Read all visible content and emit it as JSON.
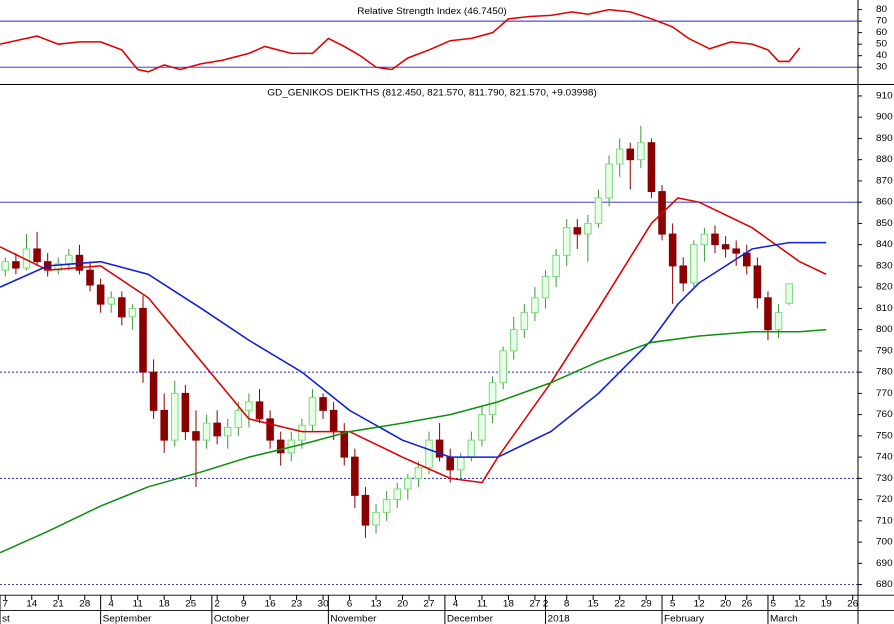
{
  "chart_data": [
    {
      "type": "line",
      "title": "Relative Strength Index (46.7450)",
      "xlim": [
        0,
        162
      ],
      "ylim": [
        16.67,
        86.67
      ],
      "yticks": [
        30,
        40,
        50,
        60,
        70,
        80
      ],
      "hlines": [
        {
          "value": 70,
          "color": "#2020d0",
          "style": "solid"
        },
        {
          "value": 30,
          "color": "#2020d0",
          "style": "solid"
        }
      ],
      "series": [
        {
          "color": "#e00000",
          "x": [
            0,
            4,
            7,
            11,
            15,
            19,
            23,
            26,
            28,
            31,
            34,
            38,
            42,
            47,
            50,
            55,
            59,
            62,
            65,
            68,
            71,
            74,
            77,
            81,
            85,
            89,
            93,
            96,
            100,
            104,
            108,
            111,
            115,
            119,
            123,
            127,
            130,
            134,
            138,
            142,
            145,
            147,
            149,
            151
          ],
          "values": [
            50,
            54,
            57,
            50,
            52,
            52,
            45,
            28,
            26,
            32,
            28,
            33,
            36,
            42,
            48,
            42,
            42,
            55,
            48,
            40,
            30,
            28,
            38,
            45,
            53,
            55,
            60,
            72,
            74,
            75,
            78,
            76,
            80,
            78,
            72,
            65,
            55,
            46,
            52,
            50,
            45,
            35,
            35,
            46.745
          ]
        }
      ]
    },
    {
      "type": "candlestick",
      "title": "GD_GENIKOS DEIKTHS (812.450, 821.570, 811.790, 821.570, +9.03998)",
      "xlim": [
        0,
        162
      ],
      "ylim": [
        675,
        914.5
      ],
      "yticks": [
        680,
        690,
        700,
        710,
        720,
        730,
        740,
        750,
        760,
        770,
        780,
        790,
        800,
        810,
        820,
        830,
        840,
        850,
        860,
        870,
        880,
        890,
        900,
        910
      ],
      "xticks": [
        {
          "value": 1,
          "label": "7"
        },
        {
          "value": 6,
          "label": "14"
        },
        {
          "value": 11,
          "label": "21"
        },
        {
          "value": 16,
          "label": "28"
        },
        {
          "value": 21,
          "label": "4"
        },
        {
          "value": 26,
          "label": "11"
        },
        {
          "value": 31,
          "label": "18"
        },
        {
          "value": 36,
          "label": "25"
        },
        {
          "value": 41,
          "label": "2"
        },
        {
          "value": 46,
          "label": "9"
        },
        {
          "value": 51,
          "label": "16"
        },
        {
          "value": 56,
          "label": "23"
        },
        {
          "value": 61,
          "label": "30"
        },
        {
          "value": 66,
          "label": "6"
        },
        {
          "value": 71,
          "label": "13"
        },
        {
          "value": 76,
          "label": "20"
        },
        {
          "value": 81,
          "label": "27"
        },
        {
          "value": 86,
          "label": "4"
        },
        {
          "value": 91,
          "label": "11"
        },
        {
          "value": 96,
          "label": "18"
        },
        {
          "value": 101,
          "label": "27"
        },
        {
          "value": 103,
          "label": "2"
        },
        {
          "value": 107,
          "label": "8"
        },
        {
          "value": 112,
          "label": "15"
        },
        {
          "value": 117,
          "label": "22"
        },
        {
          "value": 122,
          "label": "29"
        },
        {
          "value": 127,
          "label": "5"
        },
        {
          "value": 132,
          "label": "12"
        },
        {
          "value": 137,
          "label": "20"
        },
        {
          "value": 141,
          "label": "26"
        },
        {
          "value": 146,
          "label": "5"
        },
        {
          "value": 151,
          "label": "12"
        },
        {
          "value": 156,
          "label": "19"
        },
        {
          "value": 161,
          "label": "26"
        }
      ],
      "month_labels": [
        {
          "value": 0,
          "label": "st"
        },
        {
          "value": 19,
          "label": "September"
        },
        {
          "value": 40,
          "label": "October"
        },
        {
          "value": 62,
          "label": "November"
        },
        {
          "value": 84,
          "label": "December"
        },
        {
          "value": 103,
          "label": "2018"
        },
        {
          "value": 125,
          "label": "February"
        },
        {
          "value": 145,
          "label": "March"
        }
      ],
      "up_color": "#7ed87e",
      "down_color": "#8b0000",
      "hlines": [
        {
          "value": 860,
          "color": "#2020d0",
          "style": "solid"
        },
        {
          "value": 780,
          "color": "#2020d0",
          "style": "dotted"
        },
        {
          "value": 730,
          "color": "#2020d0",
          "style": "dotted"
        },
        {
          "value": 680,
          "color": "#2020d0",
          "style": "dotted"
        }
      ],
      "x": [
        1,
        3,
        5,
        7,
        9,
        11,
        13,
        15,
        17,
        19,
        21,
        23,
        25,
        27,
        29,
        31,
        33,
        35,
        37,
        39,
        41,
        43,
        45,
        47,
        49,
        51,
        53,
        55,
        57,
        59,
        61,
        63,
        65,
        67,
        69,
        71,
        73,
        75,
        77,
        79,
        81,
        83,
        85,
        87,
        89,
        91,
        93,
        95,
        97,
        99,
        101,
        103,
        105,
        107,
        109,
        111,
        113,
        115,
        117,
        119,
        121,
        123,
        125,
        127,
        129,
        131,
        133,
        135,
        137,
        139,
        141,
        143,
        145,
        147,
        149
      ],
      "open": [
        828,
        832,
        829,
        838,
        832,
        828,
        831,
        835,
        828,
        821,
        812,
        815,
        806,
        810,
        780,
        762,
        748,
        770,
        752,
        748,
        756,
        750,
        754,
        762,
        766,
        758,
        748,
        742,
        748,
        755,
        768,
        762,
        752,
        740,
        722,
        708,
        714,
        720,
        725,
        730,
        735,
        748,
        740,
        734,
        740,
        748,
        760,
        775,
        790,
        800,
        808,
        815,
        825,
        835,
        848,
        845,
        850,
        862,
        878,
        885,
        880,
        888,
        865,
        845,
        830,
        822,
        840,
        845,
        840,
        838,
        836,
        830,
        815,
        800,
        812.45
      ],
      "high": [
        834,
        836,
        845,
        846,
        836,
        834,
        838,
        840,
        832,
        824,
        818,
        818,
        812,
        816,
        786,
        770,
        776,
        774,
        762,
        760,
        762,
        758,
        766,
        770,
        772,
        762,
        752,
        752,
        758,
        772,
        770,
        766,
        756,
        744,
        726,
        718,
        724,
        728,
        732,
        738,
        752,
        756,
        744,
        742,
        752,
        764,
        778,
        792,
        806,
        812,
        820,
        828,
        838,
        852,
        852,
        854,
        866,
        882,
        890,
        888,
        896,
        890,
        868,
        850,
        834,
        842,
        848,
        849,
        844,
        842,
        840,
        834,
        818,
        812,
        821.57
      ],
      "low": [
        825,
        826,
        828,
        830,
        825,
        826,
        828,
        826,
        818,
        808,
        808,
        802,
        800,
        775,
        758,
        742,
        745,
        748,
        726,
        744,
        746,
        744,
        750,
        754,
        756,
        744,
        736,
        738,
        744,
        752,
        758,
        748,
        736,
        716,
        702,
        704,
        710,
        716,
        720,
        726,
        732,
        738,
        728,
        730,
        738,
        745,
        756,
        772,
        786,
        796,
        804,
        810,
        820,
        830,
        838,
        832,
        848,
        858,
        872,
        866,
        876,
        862,
        842,
        812,
        818,
        820,
        832,
        836,
        834,
        830,
        826,
        810,
        795,
        796,
        811.79
      ],
      "close": [
        832,
        829,
        838,
        832,
        828,
        831,
        835,
        828,
        821,
        812,
        815,
        806,
        810,
        780,
        762,
        748,
        770,
        752,
        748,
        756,
        750,
        754,
        762,
        766,
        758,
        748,
        742,
        748,
        755,
        768,
        762,
        752,
        740,
        722,
        708,
        714,
        720,
        725,
        730,
        735,
        748,
        740,
        734,
        740,
        748,
        760,
        775,
        790,
        800,
        808,
        815,
        825,
        835,
        848,
        845,
        850,
        862,
        878,
        885,
        880,
        888,
        865,
        845,
        830,
        822,
        840,
        845,
        840,
        838,
        836,
        830,
        815,
        800,
        808,
        821.57
      ],
      "series": [
        {
          "color": "#e00000",
          "x": [
            0,
            9,
            19,
            28,
            38,
            47,
            57,
            66,
            76,
            85,
            91,
            94,
            104,
            113,
            123,
            128,
            132,
            142,
            151,
            156
          ],
          "values": [
            839,
            828,
            830,
            815,
            785,
            758,
            752,
            752,
            740,
            730,
            728,
            740,
            775,
            810,
            850,
            862,
            860,
            848,
            832,
            826
          ]
        },
        {
          "color": "#1020d8",
          "x": [
            0,
            9,
            19,
            28,
            38,
            47,
            57,
            66,
            76,
            85,
            94,
            104,
            113,
            123,
            128,
            132,
            142,
            149,
            156
          ],
          "values": [
            820,
            830,
            832,
            826,
            810,
            795,
            780,
            762,
            748,
            740,
            740,
            752,
            770,
            795,
            812,
            822,
            838,
            841,
            841
          ]
        },
        {
          "color": "#109010",
          "x": [
            0,
            9,
            19,
            28,
            38,
            47,
            57,
            66,
            76,
            85,
            94,
            104,
            113,
            123,
            132,
            142,
            151,
            156
          ],
          "values": [
            695,
            705,
            717,
            726,
            733,
            740,
            746,
            752,
            756,
            760,
            766,
            775,
            785,
            794,
            797,
            799,
            799,
            800
          ]
        }
      ]
    }
  ]
}
